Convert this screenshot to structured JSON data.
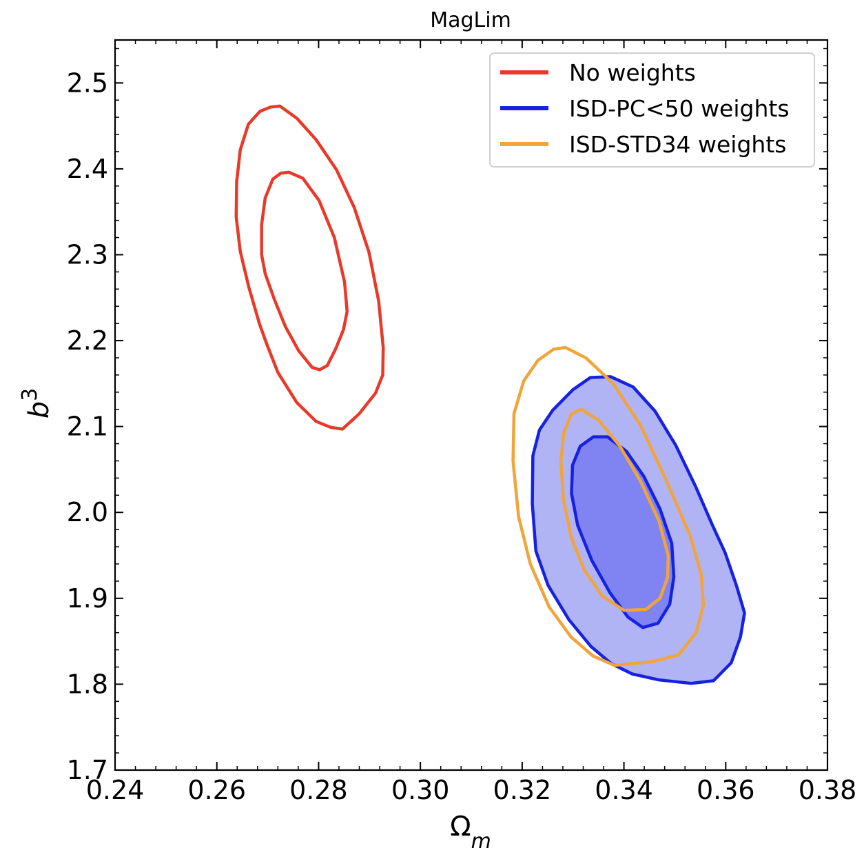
{
  "chart_data": {
    "type": "contour",
    "title": "MagLim",
    "xlabel": {
      "main": "Ω",
      "sub": "m"
    },
    "ylabel": {
      "main": "b",
      "sup": "3"
    },
    "xlim": [
      0.24,
      0.38
    ],
    "ylim": [
      1.7,
      2.55
    ],
    "x_ticks": [
      0.24,
      0.26,
      0.28,
      0.3,
      0.32,
      0.34,
      0.36,
      0.38
    ],
    "x_tick_labels": [
      "0.24",
      "0.26",
      "0.28",
      "0.30",
      "0.32",
      "0.34",
      "0.36",
      "0.38"
    ],
    "y_ticks": [
      1.7,
      1.8,
      1.9,
      2.0,
      2.1,
      2.2,
      2.3,
      2.4,
      2.5
    ],
    "y_tick_labels": [
      "1.7",
      "1.8",
      "1.9",
      "2.0",
      "2.1",
      "2.2",
      "2.3",
      "2.4",
      "2.5"
    ],
    "grid": false,
    "legend_position": "top-right",
    "series": [
      {
        "name": "No weights",
        "color": "#e8392a",
        "filled": false,
        "contours": [
          [
            [
              0.2724,
              2.473
            ],
            [
              0.2757,
              2.459
            ],
            [
              0.2795,
              2.434
            ],
            [
              0.2835,
              2.399
            ],
            [
              0.287,
              2.355
            ],
            [
              0.2899,
              2.303
            ],
            [
              0.2918,
              2.246
            ],
            [
              0.2927,
              2.192
            ],
            [
              0.2926,
              2.16
            ],
            [
              0.2912,
              2.139
            ],
            [
              0.288,
              2.115
            ],
            [
              0.2847,
              2.097
            ],
            [
              0.2824,
              2.099
            ],
            [
              0.2795,
              2.106
            ],
            [
              0.2757,
              2.128
            ],
            [
              0.272,
              2.163
            ],
            [
              0.27,
              2.193
            ],
            [
              0.2684,
              2.219
            ],
            [
              0.2663,
              2.262
            ],
            [
              0.2646,
              2.304
            ],
            [
              0.2638,
              2.344
            ],
            [
              0.2639,
              2.385
            ],
            [
              0.2646,
              2.422
            ],
            [
              0.2662,
              2.452
            ],
            [
              0.2685,
              2.467
            ],
            [
              0.2706,
              2.472
            ],
            [
              0.2724,
              2.473
            ]
          ],
          [
            [
              0.2742,
              2.396
            ],
            [
              0.2769,
              2.389
            ],
            [
              0.2801,
              2.363
            ],
            [
              0.2831,
              2.32
            ],
            [
              0.2851,
              2.268
            ],
            [
              0.2856,
              2.234
            ],
            [
              0.2849,
              2.213
            ],
            [
              0.2834,
              2.191
            ],
            [
              0.2817,
              2.171
            ],
            [
              0.2802,
              2.166
            ],
            [
              0.2787,
              2.169
            ],
            [
              0.2761,
              2.188
            ],
            [
              0.2735,
              2.216
            ],
            [
              0.2713,
              2.248
            ],
            [
              0.2695,
              2.278
            ],
            [
              0.2688,
              2.3
            ],
            [
              0.2688,
              2.335
            ],
            [
              0.2695,
              2.366
            ],
            [
              0.271,
              2.388
            ],
            [
              0.2726,
              2.395
            ],
            [
              0.2742,
              2.396
            ]
          ]
        ]
      },
      {
        "name": "ISD-PC<50 weights",
        "color": "#1622e0",
        "filled": true,
        "fill_colors": [
          "#b1b4f4",
          "#7f84f2"
        ],
        "contours": [
          [
            [
              0.3374,
              2.158
            ],
            [
              0.3418,
              2.146
            ],
            [
              0.3461,
              2.118
            ],
            [
              0.3502,
              2.078
            ],
            [
              0.3541,
              2.03
            ],
            [
              0.3574,
              1.985
            ],
            [
              0.3599,
              1.953
            ],
            [
              0.3621,
              1.915
            ],
            [
              0.3637,
              1.883
            ],
            [
              0.3629,
              1.855
            ],
            [
              0.3611,
              1.825
            ],
            [
              0.3576,
              1.804
            ],
            [
              0.3532,
              1.801
            ],
            [
              0.3469,
              1.805
            ],
            [
              0.3416,
              1.812
            ],
            [
              0.3375,
              1.824
            ],
            [
              0.3335,
              1.844
            ],
            [
              0.3292,
              1.875
            ],
            [
              0.3251,
              1.915
            ],
            [
              0.3227,
              1.955
            ],
            [
              0.322,
              2.01
            ],
            [
              0.3221,
              2.066
            ],
            [
              0.3234,
              2.096
            ],
            [
              0.326,
              2.119
            ],
            [
              0.33,
              2.143
            ],
            [
              0.3334,
              2.157
            ],
            [
              0.3374,
              2.158
            ]
          ],
          [
            [
              0.3368,
              2.088
            ],
            [
              0.3405,
              2.071
            ],
            [
              0.3439,
              2.042
            ],
            [
              0.3471,
              2.004
            ],
            [
              0.3494,
              1.964
            ],
            [
              0.3498,
              1.925
            ],
            [
              0.349,
              1.893
            ],
            [
              0.3467,
              1.871
            ],
            [
              0.3437,
              1.866
            ],
            [
              0.3408,
              1.878
            ],
            [
              0.3373,
              1.906
            ],
            [
              0.3337,
              1.944
            ],
            [
              0.3309,
              1.985
            ],
            [
              0.3297,
              2.022
            ],
            [
              0.3299,
              2.055
            ],
            [
              0.3314,
              2.077
            ],
            [
              0.334,
              2.088
            ],
            [
              0.3368,
              2.088
            ]
          ]
        ]
      },
      {
        "name": "ISD-STD34 weights",
        "color": "#f0a43a",
        "filled": false,
        "contours": [
          [
            [
              0.3285,
              2.192
            ],
            [
              0.3325,
              2.18
            ],
            [
              0.3379,
              2.15
            ],
            [
              0.3433,
              2.101
            ],
            [
              0.3485,
              2.035
            ],
            [
              0.353,
              1.973
            ],
            [
              0.3552,
              1.928
            ],
            [
              0.3556,
              1.892
            ],
            [
              0.3542,
              1.86
            ],
            [
              0.3507,
              1.834
            ],
            [
              0.3454,
              1.826
            ],
            [
              0.3381,
              1.822
            ],
            [
              0.3339,
              1.833
            ],
            [
              0.3296,
              1.855
            ],
            [
              0.3253,
              1.89
            ],
            [
              0.3216,
              1.94
            ],
            [
              0.3193,
              1.995
            ],
            [
              0.3182,
              2.06
            ],
            [
              0.3184,
              2.115
            ],
            [
              0.3203,
              2.153
            ],
            [
              0.3231,
              2.177
            ],
            [
              0.3262,
              2.19
            ],
            [
              0.3285,
              2.192
            ]
          ],
          [
            [
              0.3316,
              2.12
            ],
            [
              0.3351,
              2.107
            ],
            [
              0.3392,
              2.077
            ],
            [
              0.3432,
              2.037
            ],
            [
              0.3469,
              1.99
            ],
            [
              0.3487,
              1.95
            ],
            [
              0.3486,
              1.925
            ],
            [
              0.3471,
              1.9
            ],
            [
              0.3443,
              1.887
            ],
            [
              0.34,
              1.886
            ],
            [
              0.3357,
              1.903
            ],
            [
              0.3322,
              1.933
            ],
            [
              0.3297,
              1.97
            ],
            [
              0.3281,
              2.015
            ],
            [
              0.3276,
              2.06
            ],
            [
              0.3282,
              2.093
            ],
            [
              0.3297,
              2.115
            ],
            [
              0.3316,
              2.12
            ]
          ]
        ]
      }
    ]
  }
}
